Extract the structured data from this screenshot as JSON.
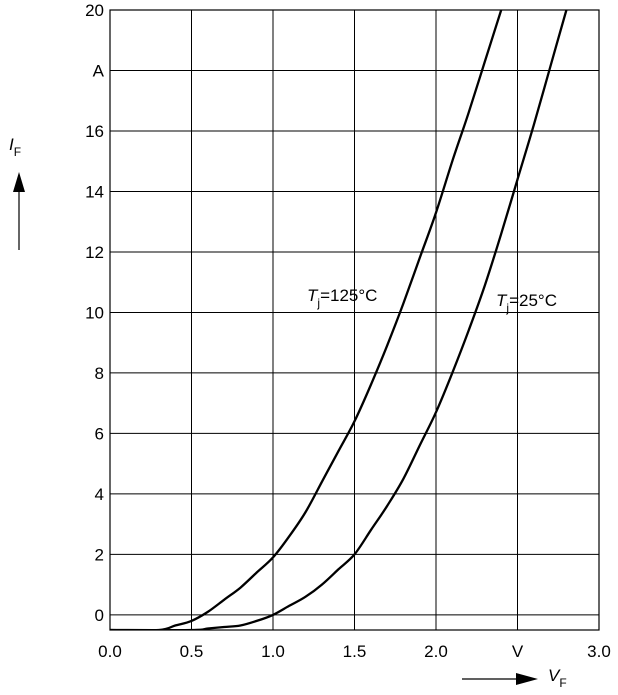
{
  "chart_data": {
    "type": "line",
    "x_axis": {
      "range": [
        0.0,
        3.0
      ],
      "ticks": [
        0.0,
        0.5,
        1.0,
        1.5,
        2.0,
        2.5,
        3.0
      ],
      "tick_labels": [
        "0.0",
        "0.5",
        "1.0",
        "1.5",
        "2.0",
        "V",
        "3.0"
      ],
      "label": "V",
      "label_sub": "F"
    },
    "y_axis": {
      "range": [
        -0.5,
        20
      ],
      "ticks": [
        0,
        2,
        4,
        6,
        8,
        10,
        12,
        14,
        16,
        18,
        20
      ],
      "tick_labels": [
        "0",
        "2",
        "4",
        "6",
        "8",
        "10",
        "12",
        "14",
        "16",
        "A",
        "20"
      ],
      "label": "I",
      "label_sub": "F"
    },
    "grid": true,
    "series": [
      {
        "label_main": "T",
        "label_sub": "j",
        "label_rest": "=125°C",
        "points": [
          [
            0.0,
            -0.5
          ],
          [
            0.3,
            -0.5
          ],
          [
            0.4,
            -0.35
          ],
          [
            0.5,
            -0.2
          ],
          [
            0.6,
            0.1
          ],
          [
            0.7,
            0.5
          ],
          [
            0.8,
            0.9
          ],
          [
            0.9,
            1.4
          ],
          [
            1.0,
            1.9
          ],
          [
            1.1,
            2.6
          ],
          [
            1.2,
            3.4
          ],
          [
            1.3,
            4.4
          ],
          [
            1.4,
            5.4
          ],
          [
            1.5,
            6.4
          ],
          [
            1.6,
            7.6
          ],
          [
            1.7,
            8.9
          ],
          [
            1.8,
            10.3
          ],
          [
            1.9,
            11.8
          ],
          [
            2.0,
            13.3
          ],
          [
            2.1,
            15.0
          ],
          [
            2.2,
            16.6
          ],
          [
            2.3,
            18.3
          ],
          [
            2.4,
            20.0
          ]
        ]
      },
      {
        "label_main": "T",
        "label_sub": "j",
        "label_rest": "=25°C",
        "points": [
          [
            0.0,
            -0.5
          ],
          [
            0.5,
            -0.5
          ],
          [
            0.6,
            -0.45
          ],
          [
            0.7,
            -0.4
          ],
          [
            0.8,
            -0.35
          ],
          [
            0.9,
            -0.2
          ],
          [
            1.0,
            0.0
          ],
          [
            1.1,
            0.3
          ],
          [
            1.2,
            0.6
          ],
          [
            1.3,
            1.0
          ],
          [
            1.4,
            1.5
          ],
          [
            1.5,
            2.0
          ],
          [
            1.6,
            2.8
          ],
          [
            1.7,
            3.6
          ],
          [
            1.8,
            4.5
          ],
          [
            1.9,
            5.6
          ],
          [
            2.0,
            6.7
          ],
          [
            2.1,
            8.0
          ],
          [
            2.2,
            9.4
          ],
          [
            2.3,
            10.9
          ],
          [
            2.4,
            12.6
          ],
          [
            2.5,
            14.4
          ],
          [
            2.6,
            16.2
          ],
          [
            2.7,
            18.1
          ],
          [
            2.8,
            20.0
          ]
        ]
      }
    ]
  }
}
